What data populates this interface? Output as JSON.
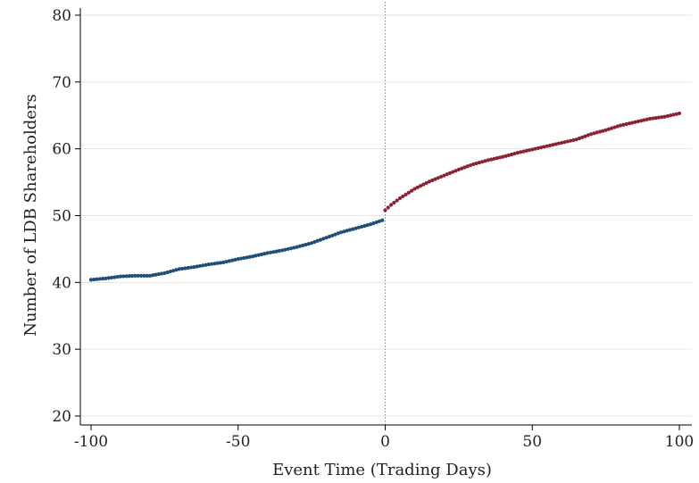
{
  "chart_data": {
    "type": "scatter",
    "title": "",
    "xlabel": "Event Time (Trading Days)",
    "ylabel": "Number of LDB Shareholders",
    "xlim": [
      -100,
      100
    ],
    "ylim": [
      20,
      80
    ],
    "xticks": [
      "-100",
      "-50",
      "0",
      "50",
      "100"
    ],
    "yticks": [
      "20",
      "30",
      "40",
      "50",
      "60",
      "70",
      "80"
    ],
    "grid": "horizontal",
    "legend": "none",
    "event_line_x": 0,
    "colors": {
      "pre": "#1f4e79",
      "post": "#8b2332",
      "event_line": "#e06666",
      "grid": "#e6e6e6",
      "axis": "#000000"
    },
    "series": [
      {
        "x": [
          -100,
          -95,
          -90,
          -85,
          -80,
          -75,
          -70,
          -65,
          -60,
          -55,
          -50,
          -45,
          -40,
          -35,
          -30,
          -25,
          -20,
          -15,
          -10,
          -5,
          -1
        ],
        "values": [
          40.4,
          40.6,
          40.9,
          41.0,
          41.0,
          41.4,
          42.0,
          42.3,
          42.7,
          43.0,
          43.5,
          43.9,
          44.4,
          44.8,
          45.3,
          45.9,
          46.7,
          47.5,
          48.1,
          48.7,
          49.3
        ]
      },
      {
        "x": [
          0,
          2,
          5,
          10,
          15,
          20,
          25,
          30,
          35,
          40,
          45,
          50,
          55,
          60,
          65,
          70,
          75,
          80,
          85,
          90,
          95,
          100
        ],
        "values": [
          50.8,
          51.6,
          52.6,
          54.0,
          55.1,
          56.0,
          56.9,
          57.7,
          58.3,
          58.8,
          59.4,
          59.9,
          60.4,
          60.9,
          61.4,
          62.2,
          62.8,
          63.5,
          64.0,
          64.5,
          64.8,
          65.3
        ]
      }
    ]
  }
}
